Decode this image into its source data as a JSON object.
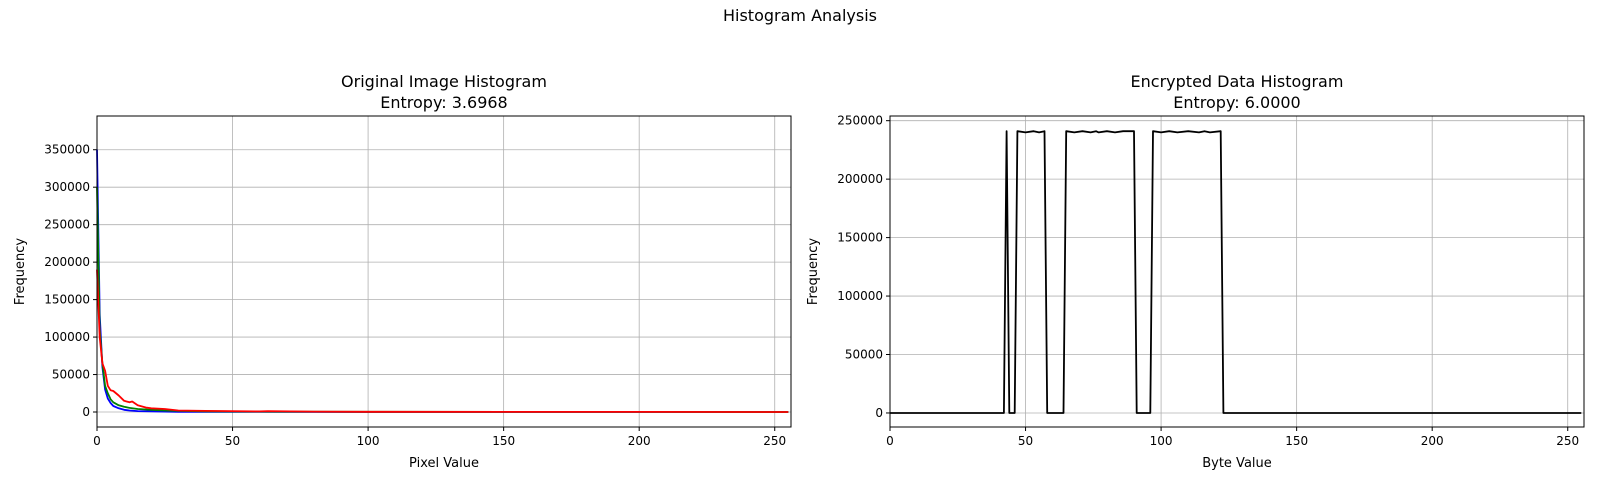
{
  "figure": {
    "suptitle": "Histogram Analysis"
  },
  "chart_data": [
    {
      "type": "line",
      "title": "Original Image Histogram",
      "subtitle": "Entropy: 3.6968",
      "xlabel": "Pixel Value",
      "ylabel": "Frequency",
      "xlim": [
        0,
        256
      ],
      "ylim": [
        -20000,
        395000
      ],
      "xticks": [
        0,
        50,
        100,
        150,
        200,
        250
      ],
      "yticks": [
        0,
        50000,
        100000,
        150000,
        200000,
        250000,
        300000,
        350000
      ],
      "grid": true,
      "series": [
        {
          "color": "#0000ff",
          "x": [
            0,
            1,
            2,
            3,
            4,
            5,
            6,
            8,
            10,
            12,
            15,
            20,
            25,
            30,
            40,
            60,
            100,
            150,
            200,
            255
          ],
          "y": [
            350000,
            130000,
            60000,
            30000,
            18000,
            12000,
            8000,
            5000,
            3000,
            2000,
            1200,
            800,
            500,
            300,
            200,
            100,
            50,
            20,
            10,
            0
          ]
        },
        {
          "color": "#008000",
          "x": [
            0,
            1,
            2,
            3,
            4,
            5,
            6,
            8,
            10,
            12,
            15,
            20,
            25,
            30,
            40,
            60,
            100,
            150,
            200,
            255
          ],
          "y": [
            300000,
            110000,
            65000,
            35000,
            25000,
            17000,
            13000,
            9000,
            7000,
            5500,
            4000,
            3000,
            2000,
            1500,
            1000,
            600,
            300,
            200,
            100,
            0
          ]
        },
        {
          "color": "#ff0000",
          "x": [
            0,
            1,
            2,
            3,
            4,
            5,
            6,
            8,
            10,
            12,
            13,
            15,
            18,
            20,
            25,
            30,
            40,
            60,
            63,
            80,
            100,
            150,
            200,
            255
          ],
          "y": [
            190000,
            100000,
            65000,
            55000,
            35000,
            29000,
            28000,
            22000,
            15000,
            13000,
            14000,
            9000,
            6000,
            5000,
            4000,
            2000,
            1500,
            800,
            1200,
            500,
            300,
            200,
            100,
            0
          ]
        }
      ]
    },
    {
      "type": "line",
      "title": "Encrypted Data Histogram",
      "subtitle": "Entropy: 6.0000",
      "xlabel": "Byte Value",
      "ylabel": "Frequency",
      "xlim": [
        0,
        256
      ],
      "ylim": [
        -12000,
        254000
      ],
      "xticks": [
        0,
        50,
        100,
        150,
        200,
        250
      ],
      "yticks": [
        0,
        50000,
        100000,
        150000,
        200000,
        250000
      ],
      "grid": true,
      "series": [
        {
          "color": "#000000",
          "x": [
            0,
            42,
            43,
            44,
            46,
            47,
            50,
            53,
            55,
            57,
            58,
            64,
            65,
            68,
            71,
            74,
            76,
            77,
            80,
            83,
            86,
            90,
            91,
            96,
            97,
            100,
            103,
            106,
            110,
            114,
            116,
            118,
            122,
            123,
            255
          ],
          "y": [
            0,
            0,
            241000,
            0,
            0,
            241000,
            240000,
            241000,
            240000,
            241000,
            0,
            0,
            241000,
            240000,
            241000,
            240000,
            241000,
            240000,
            241000,
            240000,
            241000,
            241000,
            0,
            0,
            241000,
            240000,
            241000,
            240000,
            241000,
            240000,
            241000,
            240000,
            241000,
            0,
            0
          ]
        }
      ]
    }
  ]
}
